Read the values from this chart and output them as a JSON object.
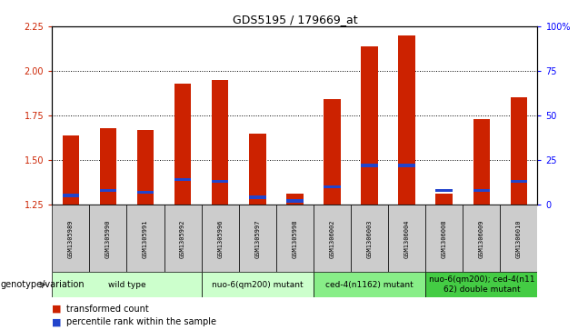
{
  "title": "GDS5195 / 179669_at",
  "samples": [
    "GSM1305989",
    "GSM1305990",
    "GSM1305991",
    "GSM1305992",
    "GSM1305996",
    "GSM1305997",
    "GSM1305998",
    "GSM1306002",
    "GSM1306003",
    "GSM1306004",
    "GSM1306008",
    "GSM1306009",
    "GSM1306010"
  ],
  "red_values": [
    1.64,
    1.68,
    1.67,
    1.93,
    1.95,
    1.65,
    1.31,
    1.84,
    2.14,
    2.2,
    1.31,
    1.73,
    1.85
  ],
  "blue_percentile": [
    5,
    8,
    7,
    14,
    13,
    4,
    2,
    10,
    22,
    22,
    8,
    8,
    13
  ],
  "ylim_left": [
    1.25,
    2.25
  ],
  "ylim_right": [
    0,
    100
  ],
  "yticks_left": [
    1.25,
    1.5,
    1.75,
    2.0,
    2.25
  ],
  "yticks_right": [
    0,
    25,
    50,
    75,
    100
  ],
  "ytick_labels_right": [
    "0",
    "25",
    "50",
    "75",
    "100%"
  ],
  "group_defs": [
    {
      "samples": [
        "GSM1305989",
        "GSM1305990",
        "GSM1305991",
        "GSM1305992"
      ],
      "label": "wild type",
      "color": "#ccffcc"
    },
    {
      "samples": [
        "GSM1305996",
        "GSM1305997",
        "GSM1305998"
      ],
      "label": "nuo-6(qm200) mutant",
      "color": "#ccffcc"
    },
    {
      "samples": [
        "GSM1306002",
        "GSM1306003",
        "GSM1306004"
      ],
      "label": "ced-4(n1162) mutant",
      "color": "#88ee88"
    },
    {
      "samples": [
        "GSM1306008",
        "GSM1306009",
        "GSM1306010"
      ],
      "label": "nuo-6(qm200); ced-4(n11\n62) double mutant",
      "color": "#44cc44"
    }
  ],
  "legend_label_red": "transformed count",
  "legend_label_blue": "percentile rank within the sample",
  "genotype_label": "genotype/variation",
  "bar_width": 0.45,
  "red_color": "#cc2200",
  "blue_color": "#2244cc",
  "chart_bg": "#ffffff",
  "cell_bg": "#cccccc",
  "title_fontsize": 9,
  "tick_fontsize": 7,
  "label_fontsize": 7,
  "sample_fontsize": 5,
  "group_fontsize": 6.5
}
